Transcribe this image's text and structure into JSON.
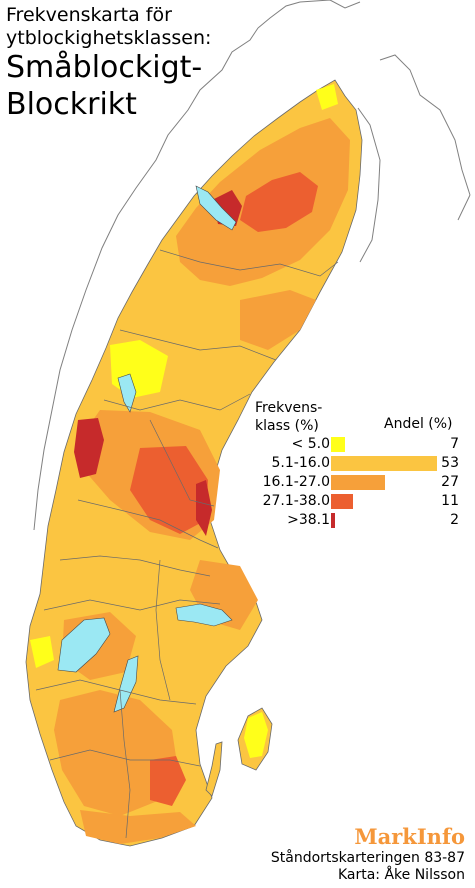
{
  "title": {
    "line1": "Frekvenskarta för",
    "line2": "ytblockighetsklassen:",
    "line3": "Småblockigt-",
    "line4": "Blockrikt"
  },
  "legend": {
    "class_heading_line1": "Frekvens-",
    "class_heading_line2": "klass (%)",
    "share_heading": "Andel (%)",
    "rows": [
      {
        "label": "<  5.0",
        "share": "7",
        "color": "#ffff1a"
      },
      {
        "label": "5.1-16.0",
        "share": "53",
        "color": "#fbc541"
      },
      {
        "label": "16.1-27.0",
        "share": "27",
        "color": "#f6a03a"
      },
      {
        "label": "27.1-38.0",
        "share": "11",
        "color": "#ec5f30"
      },
      {
        "label": ">38.1",
        "share": "2",
        "color": "#c62a2b"
      }
    ]
  },
  "map": {
    "land_color": "#fbc541",
    "lake_color": "#9be8f3",
    "border_color": "#6a6a6a"
  },
  "credits": {
    "brand": "MarkInfo",
    "survey": "Ståndortskarteringen 83-87",
    "author": "Karta: Åke Nilsson"
  }
}
